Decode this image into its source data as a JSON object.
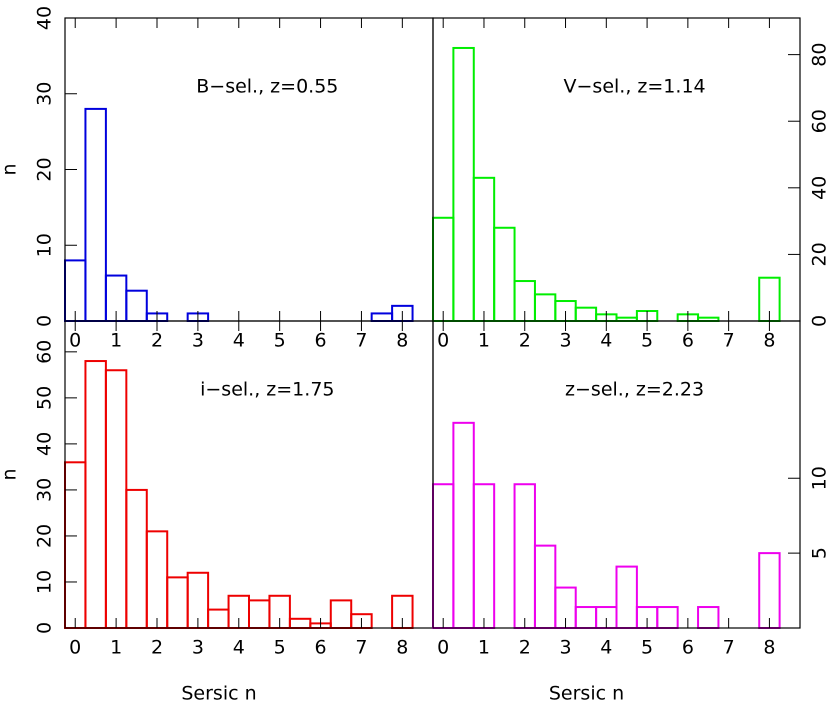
{
  "chart_data": [
    {
      "type": "histogram",
      "annotation": "B−sel., z=0.55",
      "color": "#0000dd",
      "ylabel": "n",
      "bins": [
        -0.25,
        0.25,
        0.75,
        1.25,
        1.75,
        2.25,
        2.75,
        3.25,
        3.75,
        4.25,
        4.75,
        5.25,
        5.75,
        6.25,
        6.75,
        7.25,
        7.75,
        8.25,
        8.75
      ],
      "values": [
        8,
        28,
        6,
        4,
        1,
        0,
        1,
        0,
        0,
        0,
        0,
        0,
        0,
        0,
        0,
        1,
        2,
        0
      ],
      "xlim": [
        -0.25,
        8.75
      ],
      "xticks": [
        0,
        1,
        2,
        3,
        4,
        5,
        6,
        7,
        8
      ],
      "ylim": [
        0,
        40
      ],
      "yticks": [
        0,
        10,
        20,
        30,
        40
      ]
    },
    {
      "type": "histogram",
      "annotation": "V−sel., z=1.14",
      "color": "#00ee00",
      "bins": [
        -0.25,
        0.25,
        0.75,
        1.25,
        1.75,
        2.25,
        2.75,
        3.25,
        3.75,
        4.25,
        4.75,
        5.25,
        5.75,
        6.25,
        6.75,
        7.25,
        7.75,
        8.25,
        8.75
      ],
      "values": [
        31,
        82,
        43,
        28,
        12,
        8,
        6,
        4,
        2,
        1,
        3,
        0,
        2,
        1,
        0,
        0,
        13,
        0
      ],
      "xlim": [
        -0.25,
        8.75
      ],
      "xticks": [
        0,
        1,
        2,
        3,
        4,
        5,
        6,
        7,
        8
      ],
      "y2lim": [
        0,
        91
      ],
      "y2ticks": [
        0,
        20,
        40,
        60,
        80
      ]
    },
    {
      "type": "histogram",
      "annotation": "i−sel., z=1.75",
      "color": "#ee0000",
      "ylabel": "n",
      "xlabel": "Sersic n",
      "bins": [
        -0.25,
        0.25,
        0.75,
        1.25,
        1.75,
        2.25,
        2.75,
        3.25,
        3.75,
        4.25,
        4.75,
        5.25,
        5.75,
        6.25,
        6.75,
        7.25,
        7.75,
        8.25,
        8.75
      ],
      "values": [
        36,
        58,
        56,
        30,
        21,
        11,
        12,
        4,
        7,
        6,
        7,
        2,
        1,
        6,
        3,
        0,
        7,
        0
      ],
      "xlim": [
        -0.25,
        8.75
      ],
      "xticks": [
        0,
        1,
        2,
        3,
        4,
        5,
        6,
        7,
        8
      ],
      "ylim": [
        0,
        66.7
      ],
      "yticks": [
        0,
        10,
        20,
        30,
        40,
        50,
        60
      ]
    },
    {
      "type": "histogram",
      "annotation": "z−sel., z=2.23",
      "color": "#ee00ee",
      "xlabel": "Sersic n",
      "bins": [
        -0.25,
        0.25,
        0.75,
        1.25,
        1.75,
        2.25,
        2.75,
        3.25,
        3.75,
        4.25,
        4.75,
        5.25,
        5.75,
        6.25,
        6.75,
        7.25,
        7.75,
        8.25,
        8.75
      ],
      "values": [
        9.6,
        13.7,
        9.6,
        0,
        9.6,
        5.5,
        2.7,
        1.4,
        1.4,
        4.1,
        1.4,
        1.4,
        0,
        1.4,
        0,
        0,
        5,
        0
      ],
      "xlim": [
        -0.25,
        8.75
      ],
      "xticks": [
        0,
        1,
        2,
        3,
        4,
        5,
        6,
        7,
        8
      ],
      "y2lim": [
        0,
        20.5
      ],
      "y2ticks": [
        5,
        10
      ]
    }
  ]
}
